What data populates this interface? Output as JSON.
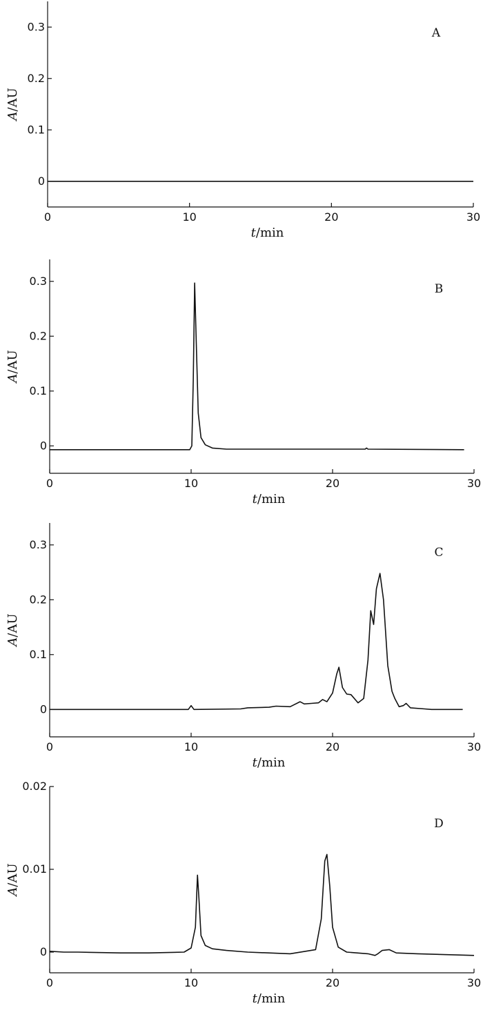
{
  "chart_data": [
    {
      "type": "line",
      "panel_label": "A",
      "xlabel_var": "t",
      "xlabel_unit": "/min",
      "ylabel_var": "A",
      "ylabel_unit": "/AU",
      "xlim": [
        0,
        30
      ],
      "ylim": [
        -0.05,
        0.35
      ],
      "xticks": [
        0,
        10,
        20,
        30
      ],
      "yticks": [
        0,
        0.1,
        0.2,
        0.3
      ],
      "ytick_labels": [
        "0",
        "0.1",
        "0.2",
        "0.3"
      ],
      "series": [
        {
          "x": [
            0,
            30
          ],
          "y": [
            0,
            0
          ]
        }
      ]
    },
    {
      "type": "line",
      "panel_label": "B",
      "xlabel_var": "t",
      "xlabel_unit": "/min",
      "ylabel_var": "A",
      "ylabel_unit": "/AU",
      "xlim": [
        0,
        30
      ],
      "ylim": [
        -0.05,
        0.34
      ],
      "xticks": [
        0,
        10,
        20,
        30
      ],
      "yticks": [
        0,
        0.1,
        0.2,
        0.3
      ],
      "ytick_labels": [
        "0",
        "0.1",
        "0.2",
        "0.3"
      ],
      "series": [
        {
          "x": [
            0,
            9.9,
            10.05,
            10.15,
            10.25,
            10.35,
            10.5,
            10.7,
            11.0,
            11.5,
            12.5,
            22.3,
            22.4,
            22.5,
            29.3
          ],
          "y": [
            -0.007,
            -0.007,
            0.0,
            0.12,
            0.297,
            0.2,
            0.06,
            0.015,
            0.002,
            -0.004,
            -0.006,
            -0.006,
            -0.004,
            -0.006,
            -0.007
          ]
        }
      ]
    },
    {
      "type": "line",
      "panel_label": "C",
      "xlabel_var": "t",
      "xlabel_unit": "/min",
      "ylabel_var": "A",
      "ylabel_unit": "/AU",
      "xlim": [
        0,
        30
      ],
      "ylim": [
        -0.05,
        0.34
      ],
      "xticks": [
        0,
        10,
        20,
        30
      ],
      "yticks": [
        0,
        0.1,
        0.2,
        0.3
      ],
      "ytick_labels": [
        "0",
        "0.1",
        "0.2",
        "0.3"
      ],
      "series": [
        {
          "x": [
            0,
            9.8,
            10.0,
            10.2,
            13.5,
            14.0,
            15.5,
            16.0,
            17.0,
            17.7,
            18.0,
            18.5,
            19.0,
            19.3,
            19.6,
            20.0,
            20.3,
            20.45,
            20.7,
            21.0,
            21.3,
            21.8,
            22.2,
            22.5,
            22.7,
            22.9,
            23.1,
            23.35,
            23.6,
            23.9,
            24.2,
            24.4,
            24.7,
            25.0,
            25.2,
            25.5,
            26.5,
            27.0,
            29.2
          ],
          "y": [
            0,
            0,
            0.007,
            0,
            0.001,
            0.003,
            0.004,
            0.006,
            0.005,
            0.014,
            0.01,
            0.011,
            0.012,
            0.018,
            0.014,
            0.03,
            0.065,
            0.077,
            0.04,
            0.028,
            0.027,
            0.012,
            0.02,
            0.09,
            0.18,
            0.155,
            0.22,
            0.248,
            0.2,
            0.08,
            0.033,
            0.02,
            0.005,
            0.007,
            0.011,
            0.003,
            0.001,
            0,
            0
          ]
        }
      ]
    },
    {
      "type": "line",
      "panel_label": "D",
      "xlabel_var": "t",
      "xlabel_unit": "/min",
      "ylabel_var": "A",
      "ylabel_unit": "/AU",
      "xlim": [
        0,
        30
      ],
      "ylim": [
        -0.0025,
        0.02
      ],
      "xticks": [
        0,
        10,
        20,
        30
      ],
      "yticks": [
        0,
        0.01,
        0.02
      ],
      "ytick_labels": [
        "0",
        "0.01",
        "0.02"
      ],
      "series": [
        {
          "x": [
            0,
            1.0,
            2.0,
            5.0,
            7.0,
            9.5,
            10.0,
            10.3,
            10.45,
            10.55,
            10.7,
            11.0,
            11.5,
            12.5,
            14.0,
            17.0,
            18.8,
            19.2,
            19.45,
            19.6,
            19.8,
            20.0,
            20.4,
            21.0,
            22.5,
            23.0,
            23.2,
            23.5,
            24.0,
            24.5,
            26.0,
            30.0
          ],
          "y": [
            0.0001,
            0.0,
            0.0,
            -0.0001,
            -0.0001,
            0.0,
            0.0005,
            0.003,
            0.0093,
            0.0065,
            0.002,
            0.0008,
            0.0004,
            0.0002,
            0.0,
            -0.0002,
            0.0003,
            0.004,
            0.011,
            0.0118,
            0.008,
            0.003,
            0.0006,
            0.0,
            -0.0002,
            -0.0004,
            -0.0002,
            0.0002,
            0.0003,
            -0.0001,
            -0.0002,
            -0.0004
          ]
        }
      ]
    }
  ]
}
